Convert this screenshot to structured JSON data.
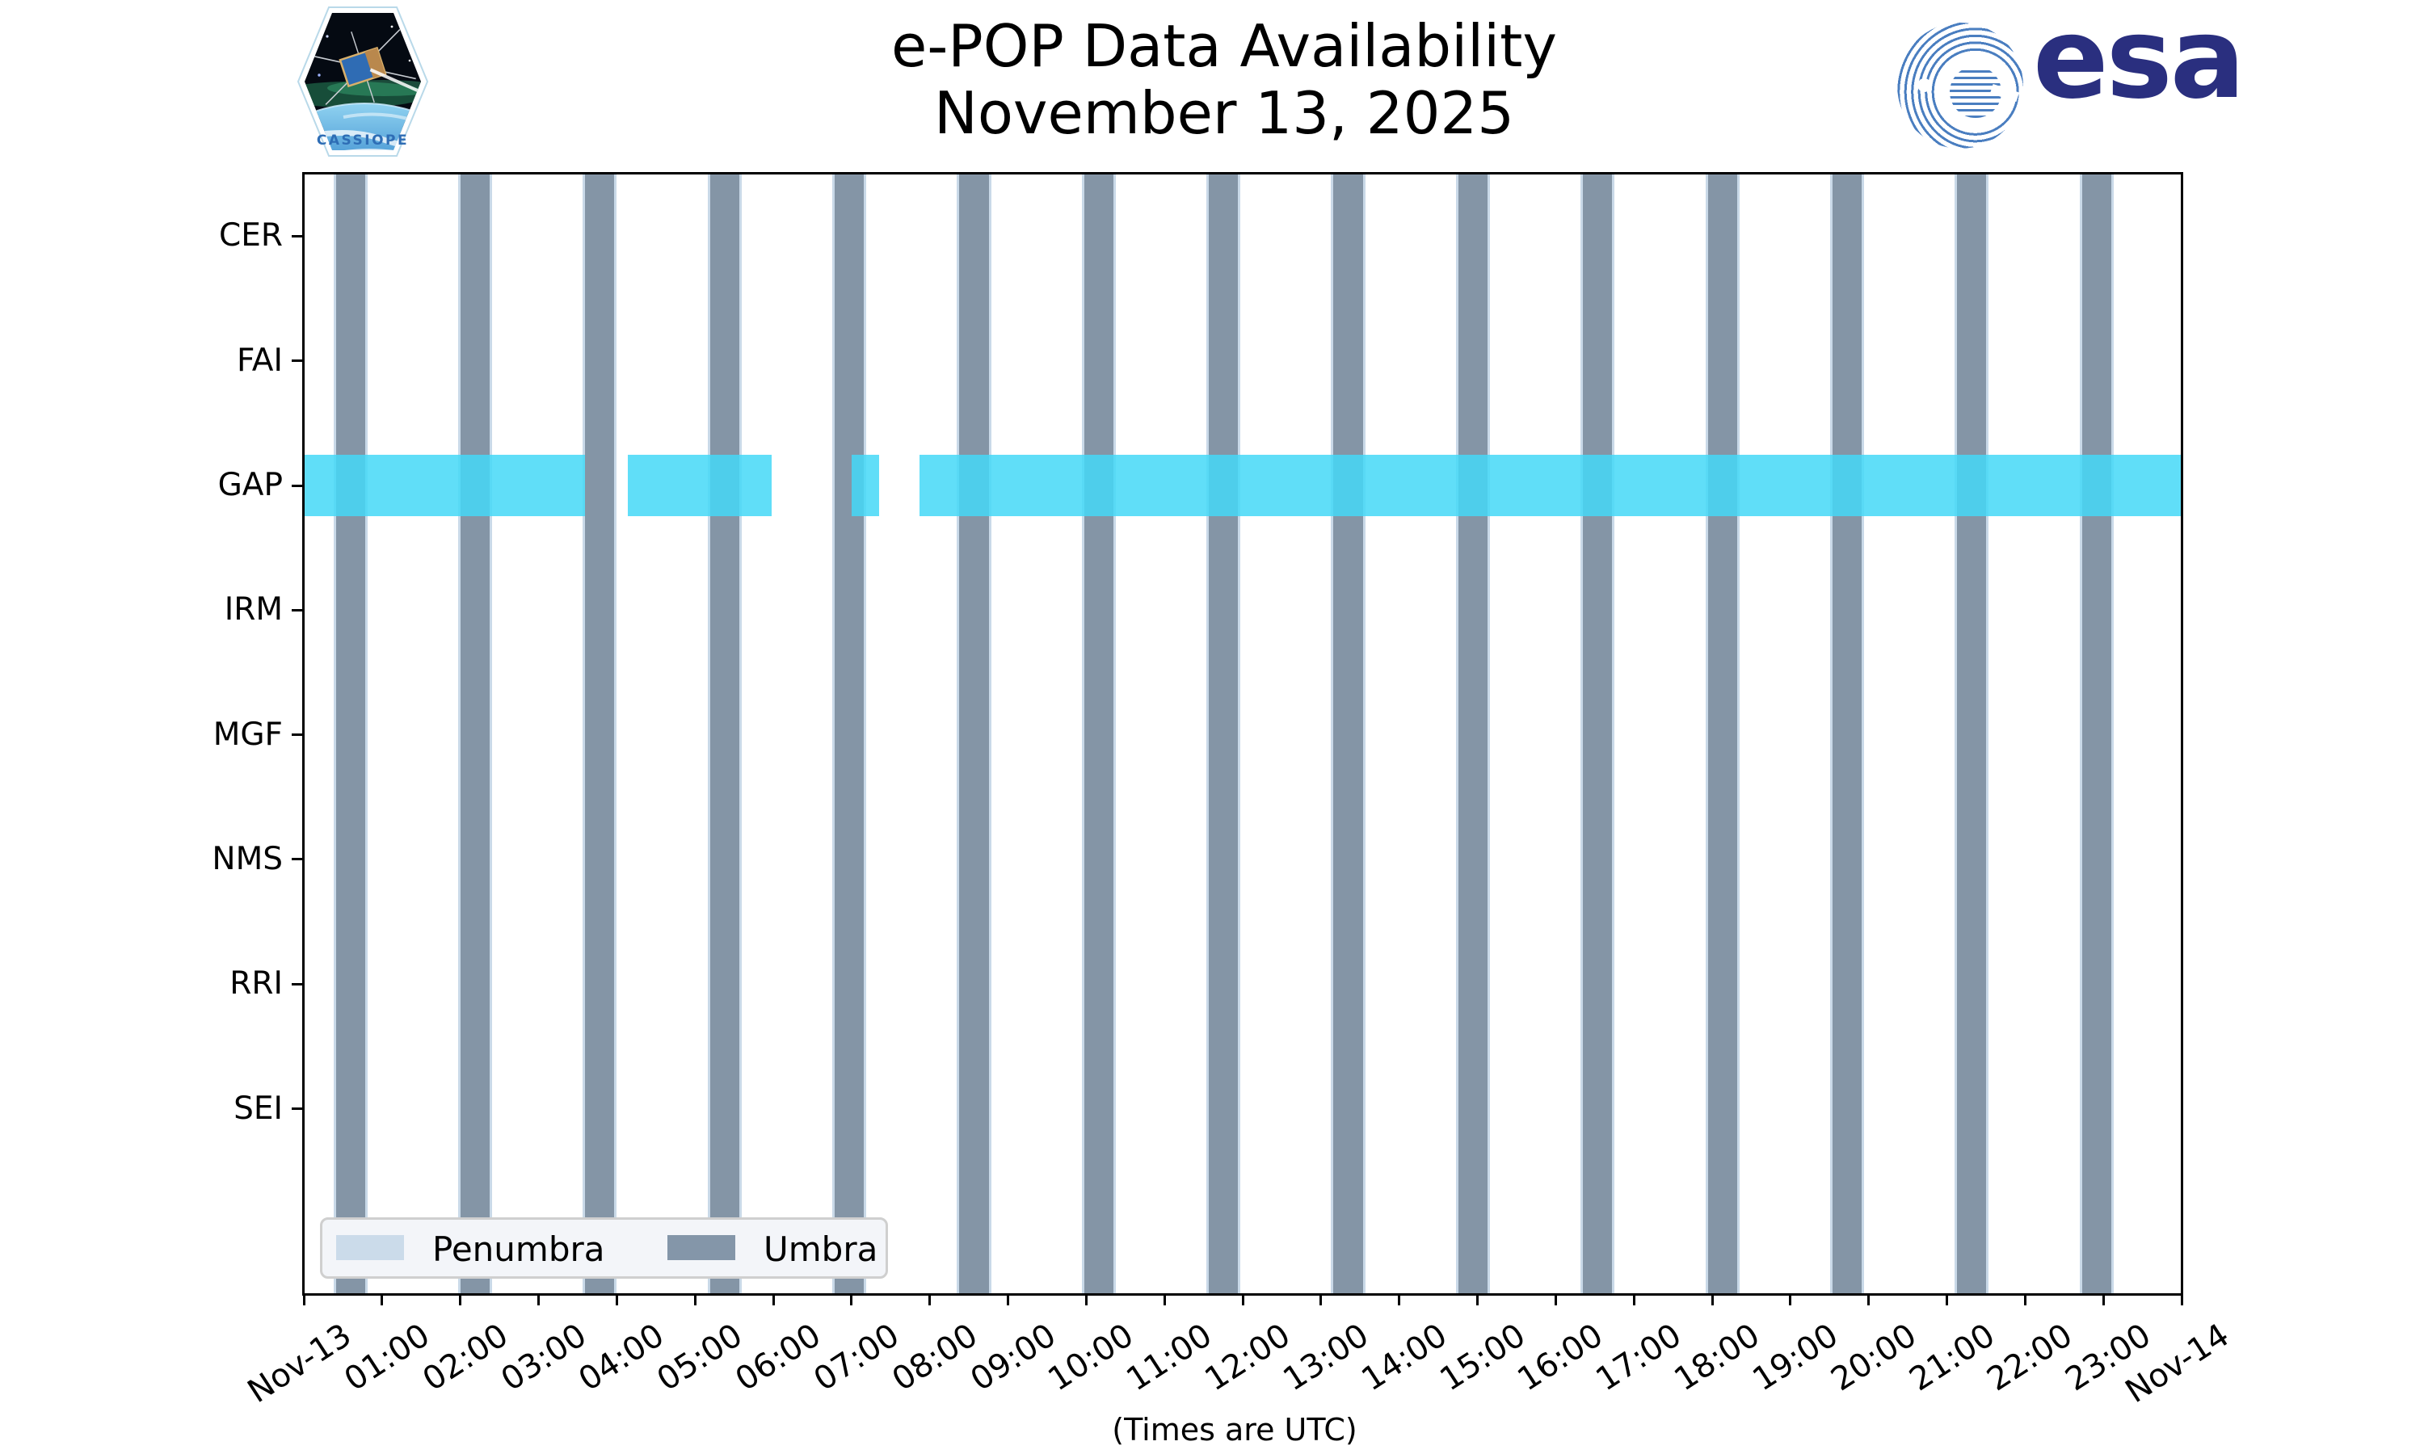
{
  "header": {
    "title_line1": "e-POP Data Availability",
    "title_line2": "November 13, 2025",
    "patch_label": "CASSIOPE",
    "esa_wordmark": "esa"
  },
  "chart_data": {
    "type": "availability-timeline",
    "title": "e-POP Data Availability",
    "subtitle": "November 13, 2025",
    "x_axis": {
      "caption": "(Times are UTC)",
      "range_hours": [
        0,
        24
      ],
      "tick_labels": [
        "Nov-13",
        "01:00",
        "02:00",
        "03:00",
        "04:00",
        "05:00",
        "06:00",
        "07:00",
        "08:00",
        "09:00",
        "10:00",
        "11:00",
        "12:00",
        "13:00",
        "14:00",
        "15:00",
        "16:00",
        "17:00",
        "18:00",
        "19:00",
        "20:00",
        "21:00",
        "22:00",
        "23:00",
        "Nov-14"
      ]
    },
    "y_axis": {
      "instruments": [
        "CER",
        "FAI",
        "GAP",
        "IRM",
        "MGF",
        "NMS",
        "RRI",
        "SEI"
      ]
    },
    "availability_hours": {
      "CER": [],
      "FAI": [],
      "GAP": [
        [
          0.0,
          3.594
        ],
        [
          4.141,
          5.98
        ],
        [
          7.002,
          7.353
        ],
        [
          7.87,
          24.0
        ]
      ],
      "IRM": [],
      "MGF": [],
      "NMS": [],
      "RRI": [],
      "SEI": []
    },
    "umbra_intervals_hours": [
      [
        0.408,
        0.782
      ],
      [
        2.002,
        2.376
      ],
      [
        3.596,
        3.97
      ],
      [
        5.19,
        5.564
      ],
      [
        6.784,
        7.158
      ],
      [
        8.379,
        8.753
      ],
      [
        9.973,
        10.347
      ],
      [
        11.567,
        11.941
      ],
      [
        13.161,
        13.535
      ],
      [
        14.755,
        15.129
      ],
      [
        16.349,
        16.723
      ],
      [
        17.944,
        18.318
      ],
      [
        19.538,
        19.912
      ],
      [
        21.132,
        21.506
      ],
      [
        22.726,
        23.1
      ]
    ],
    "penumbra_pad_hours": 0.031,
    "legend": {
      "items": [
        {
          "label": "Penumbra",
          "color": "#CBDBEA"
        },
        {
          "label": "Umbra",
          "color": "#8496A9"
        }
      ]
    },
    "colors": {
      "availability_band": "rgba(68,216,247,0.85)",
      "umbra": "#8495A6",
      "penumbra": "#C9D9E8",
      "axis": "#000000"
    }
  }
}
